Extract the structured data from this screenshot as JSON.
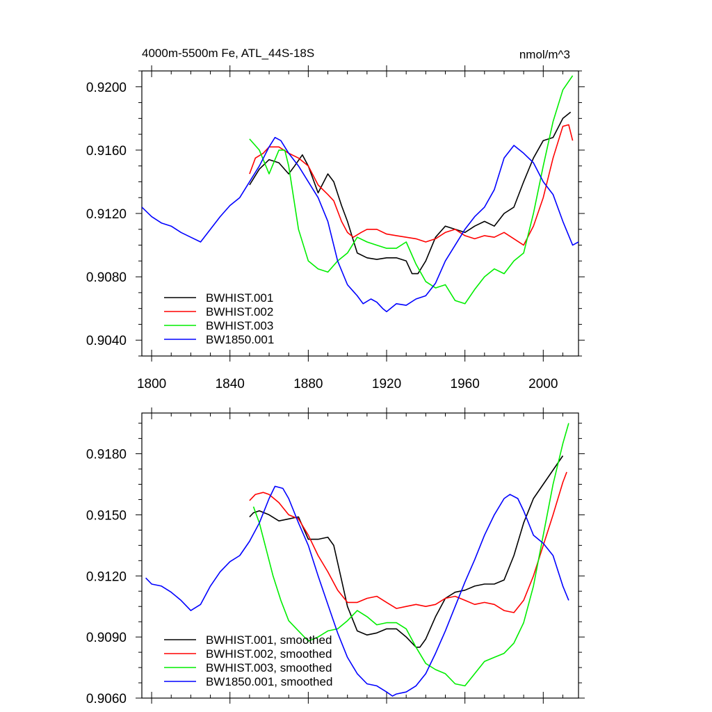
{
  "figure": {
    "title_left": "4000m-5500m Fe, ATL_44S-18S",
    "title_right": "nmol/m^3"
  },
  "chart_data": [
    {
      "type": "line",
      "title": "4000m-5500m Fe, ATL_44S-18S",
      "units": "nmol/m^3",
      "xlabel": "",
      "ylabel": "",
      "xlim": [
        1795,
        2018
      ],
      "ylim": [
        0.903,
        0.921
      ],
      "xticks": [
        1800,
        1840,
        1880,
        1920,
        1960,
        2000
      ],
      "xtick_labels": [
        "1800",
        "1840",
        "1880",
        "1920",
        "1960",
        "2000"
      ],
      "yticks": [
        0.904,
        0.908,
        0.912,
        0.916,
        0.92
      ],
      "ytick_labels": [
        "0.9040",
        "0.9080",
        "0.9120",
        "0.9160",
        "0.9200"
      ],
      "legend_position": "bottom-left",
      "series": [
        {
          "name": "BWHIST.001",
          "color": "#000000",
          "x": [
            1850,
            1855,
            1860,
            1865,
            1870,
            1873,
            1877,
            1880,
            1885,
            1890,
            1893,
            1897,
            1900,
            1905,
            1910,
            1915,
            1920,
            1925,
            1930,
            1933,
            1936,
            1940,
            1945,
            1950,
            1955,
            1960,
            1965,
            1970,
            1975,
            1980,
            1985,
            1990,
            1995,
            2000,
            2005,
            2010,
            2014
          ],
          "y": [
            0.9138,
            0.9148,
            0.9154,
            0.9152,
            0.9145,
            0.915,
            0.9157,
            0.915,
            0.9133,
            0.9145,
            0.914,
            0.9125,
            0.9115,
            0.9095,
            0.9092,
            0.9091,
            0.9092,
            0.9092,
            0.909,
            0.9082,
            0.9082,
            0.909,
            0.9105,
            0.9112,
            0.911,
            0.9108,
            0.9112,
            0.9115,
            0.9112,
            0.912,
            0.9124,
            0.914,
            0.9155,
            0.9166,
            0.9168,
            0.918,
            0.9184
          ]
        },
        {
          "name": "BWHIST.002",
          "color": "#ff0000",
          "x": [
            1850,
            1853,
            1857,
            1860,
            1865,
            1870,
            1875,
            1880,
            1885,
            1890,
            1893,
            1897,
            1900,
            1903,
            1907,
            1910,
            1915,
            1920,
            1925,
            1930,
            1935,
            1940,
            1945,
            1950,
            1955,
            1960,
            1965,
            1970,
            1975,
            1980,
            1985,
            1990,
            1995,
            2000,
            2005,
            2010,
            2013,
            2015
          ],
          "y": [
            0.9145,
            0.9155,
            0.9158,
            0.9162,
            0.9162,
            0.9158,
            0.9155,
            0.915,
            0.9138,
            0.9132,
            0.9128,
            0.9115,
            0.9108,
            0.9105,
            0.9108,
            0.911,
            0.911,
            0.9107,
            0.9106,
            0.9105,
            0.9104,
            0.9102,
            0.9104,
            0.9108,
            0.911,
            0.9106,
            0.9104,
            0.9106,
            0.9105,
            0.9108,
            0.9104,
            0.91,
            0.9112,
            0.913,
            0.9155,
            0.9175,
            0.9176,
            0.9166
          ]
        },
        {
          "name": "BWHIST.003",
          "color": "#00ee00",
          "x": [
            1850,
            1855,
            1860,
            1865,
            1868,
            1870,
            1875,
            1880,
            1885,
            1890,
            1895,
            1900,
            1905,
            1910,
            1915,
            1920,
            1925,
            1930,
            1935,
            1940,
            1945,
            1950,
            1955,
            1960,
            1965,
            1970,
            1975,
            1980,
            1985,
            1990,
            1995,
            2000,
            2005,
            2010,
            2015
          ],
          "y": [
            0.9167,
            0.916,
            0.9145,
            0.916,
            0.916,
            0.915,
            0.911,
            0.909,
            0.9085,
            0.9083,
            0.909,
            0.9095,
            0.9105,
            0.9102,
            0.91,
            0.9098,
            0.9098,
            0.9102,
            0.9088,
            0.9077,
            0.9073,
            0.9075,
            0.9065,
            0.9063,
            0.9072,
            0.908,
            0.9085,
            0.9082,
            0.909,
            0.9095,
            0.912,
            0.915,
            0.9178,
            0.9198,
            0.9207
          ]
        },
        {
          "name": "BW1850.001",
          "color": "#0000ff",
          "x": [
            1795,
            1800,
            1805,
            1810,
            1815,
            1820,
            1825,
            1830,
            1835,
            1840,
            1845,
            1850,
            1855,
            1860,
            1863,
            1866,
            1870,
            1875,
            1880,
            1885,
            1890,
            1895,
            1900,
            1905,
            1908,
            1912,
            1915,
            1918,
            1920,
            1925,
            1930,
            1935,
            1940,
            1945,
            1950,
            1955,
            1960,
            1965,
            1970,
            1975,
            1980,
            1985,
            1990,
            1995,
            2000,
            2005,
            2010,
            2015,
            2018
          ],
          "y": [
            0.9124,
            0.9118,
            0.9114,
            0.9112,
            0.9108,
            0.9105,
            0.9102,
            0.911,
            0.9118,
            0.9125,
            0.913,
            0.914,
            0.915,
            0.9162,
            0.9168,
            0.9166,
            0.9158,
            0.915,
            0.914,
            0.913,
            0.9115,
            0.909,
            0.9075,
            0.9068,
            0.9063,
            0.9066,
            0.9064,
            0.906,
            0.9058,
            0.9063,
            0.9062,
            0.9066,
            0.9068,
            0.9076,
            0.909,
            0.91,
            0.911,
            0.9118,
            0.9124,
            0.9135,
            0.9155,
            0.9163,
            0.9158,
            0.9152,
            0.914,
            0.9132,
            0.9115,
            0.91,
            0.9102
          ]
        }
      ]
    },
    {
      "type": "line",
      "title": "",
      "xlabel": "",
      "ylabel": "",
      "xlim": [
        1795,
        2018
      ],
      "ylim": [
        0.906,
        0.92
      ],
      "xticks": [
        1800,
        1840,
        1880,
        1920,
        1960,
        2000
      ],
      "yticks": [
        0.906,
        0.909,
        0.912,
        0.915,
        0.918
      ],
      "ytick_labels": [
        "0.9060",
        "0.9090",
        "0.9120",
        "0.9150",
        "0.9180"
      ],
      "legend_position": "bottom-left",
      "series": [
        {
          "name": "BWHIST.001, smoothed",
          "color": "#000000",
          "x": [
            1850,
            1852,
            1855,
            1860,
            1865,
            1870,
            1875,
            1880,
            1885,
            1890,
            1893,
            1897,
            1900,
            1905,
            1910,
            1915,
            1920,
            1925,
            1930,
            1935,
            1937,
            1940,
            1945,
            1950,
            1955,
            1960,
            1965,
            1970,
            1975,
            1980,
            1985,
            1990,
            1995,
            2000,
            2005,
            2010
          ],
          "y": [
            0.9149,
            0.9151,
            0.9152,
            0.915,
            0.9147,
            0.9148,
            0.9149,
            0.9138,
            0.9138,
            0.9139,
            0.9135,
            0.9118,
            0.9105,
            0.9093,
            0.9091,
            0.9092,
            0.9094,
            0.9094,
            0.909,
            0.9085,
            0.9085,
            0.9089,
            0.91,
            0.9109,
            0.9112,
            0.9113,
            0.9115,
            0.9116,
            0.9116,
            0.9118,
            0.913,
            0.9146,
            0.9158,
            0.9165,
            0.9172,
            0.9179
          ]
        },
        {
          "name": "BWHIST.002, smoothed",
          "color": "#ff0000",
          "x": [
            1850,
            1853,
            1857,
            1860,
            1865,
            1870,
            1875,
            1880,
            1885,
            1890,
            1895,
            1900,
            1905,
            1910,
            1915,
            1920,
            1925,
            1930,
            1935,
            1940,
            1945,
            1950,
            1955,
            1960,
            1965,
            1970,
            1975,
            1980,
            1985,
            1990,
            1995,
            2000,
            2005,
            2010,
            2012
          ],
          "y": [
            0.9157,
            0.916,
            0.9161,
            0.916,
            0.9156,
            0.915,
            0.9148,
            0.914,
            0.913,
            0.9122,
            0.9113,
            0.9107,
            0.9107,
            0.9109,
            0.911,
            0.9107,
            0.9104,
            0.9105,
            0.9106,
            0.9105,
            0.9106,
            0.9109,
            0.911,
            0.9108,
            0.9106,
            0.9107,
            0.9106,
            0.9103,
            0.9102,
            0.9108,
            0.912,
            0.9135,
            0.915,
            0.9166,
            0.9171
          ]
        },
        {
          "name": "BWHIST.003, smoothed",
          "color": "#00ee00",
          "x": [
            1852,
            1855,
            1858,
            1862,
            1866,
            1870,
            1875,
            1880,
            1885,
            1890,
            1895,
            1900,
            1905,
            1910,
            1915,
            1920,
            1925,
            1930,
            1935,
            1940,
            1945,
            1950,
            1955,
            1960,
            1965,
            1970,
            1975,
            1980,
            1985,
            1990,
            1995,
            2000,
            2005,
            2010,
            2013
          ],
          "y": [
            0.9154,
            0.9146,
            0.9135,
            0.912,
            0.9108,
            0.9098,
            0.9093,
            0.9088,
            0.909,
            0.9093,
            0.9094,
            0.9098,
            0.9103,
            0.91,
            0.9096,
            0.9097,
            0.9097,
            0.9094,
            0.9085,
            0.9077,
            0.9074,
            0.9072,
            0.9067,
            0.9066,
            0.9072,
            0.9078,
            0.908,
            0.9082,
            0.9087,
            0.9097,
            0.9115,
            0.914,
            0.9165,
            0.9185,
            0.9195
          ]
        },
        {
          "name": "BW1850.001, smoothed",
          "color": "#0000ff",
          "x": [
            1797,
            1800,
            1805,
            1810,
            1815,
            1820,
            1825,
            1830,
            1835,
            1840,
            1845,
            1850,
            1855,
            1860,
            1863,
            1867,
            1870,
            1875,
            1880,
            1885,
            1890,
            1895,
            1900,
            1905,
            1910,
            1915,
            1920,
            1923,
            1925,
            1930,
            1935,
            1940,
            1945,
            1950,
            1955,
            1960,
            1965,
            1970,
            1975,
            1980,
            1983,
            1987,
            1990,
            1995,
            2000,
            2005,
            2010,
            2013
          ],
          "y": [
            0.9119,
            0.9116,
            0.9115,
            0.9112,
            0.9108,
            0.9103,
            0.9106,
            0.9115,
            0.9122,
            0.9127,
            0.913,
            0.9137,
            0.9146,
            0.9158,
            0.9164,
            0.9163,
            0.9158,
            0.9146,
            0.9135,
            0.912,
            0.9106,
            0.9092,
            0.908,
            0.9072,
            0.9067,
            0.9066,
            0.9063,
            0.9061,
            0.9062,
            0.9063,
            0.9066,
            0.9072,
            0.9082,
            0.9093,
            0.9105,
            0.9117,
            0.9128,
            0.914,
            0.915,
            0.9158,
            0.916,
            0.9158,
            0.9152,
            0.914,
            0.9136,
            0.913,
            0.9115,
            0.9108
          ]
        }
      ]
    }
  ]
}
